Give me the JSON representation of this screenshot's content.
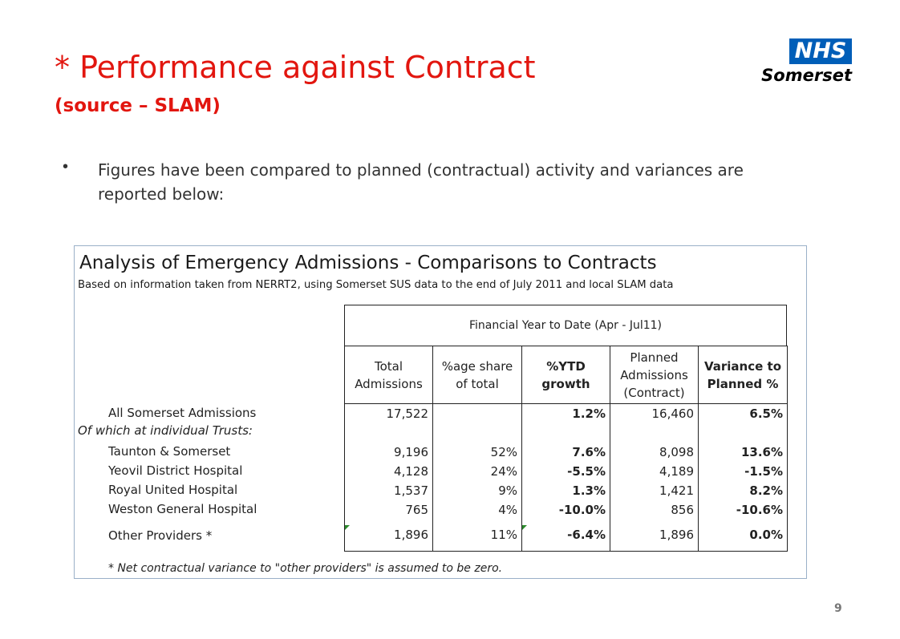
{
  "slide": {
    "title": "* Performance against Contract",
    "subtitle": "(source – SLAM)",
    "bullet": "Figures have been compared to planned (contractual) activity and variances are reported below:",
    "page_number": "9"
  },
  "logo": {
    "mark": "NHS",
    "name": "Somerset",
    "color": "#005eb8"
  },
  "table": {
    "title": "Analysis of Emergency Admissions - Comparisons to Contracts",
    "subtitle": "Based on information taken from NERRT2, using Somerset SUS data to the end of July 2011 and local SLAM data",
    "period_header": "Financial Year to Date (Apr - Jul11)",
    "columns": [
      "Total Admissions",
      "%age share of total",
      "%YTD growth",
      "Planned Admissions (Contract)",
      "Variance to Planned %"
    ],
    "section_label": "Of which at individual Trusts:",
    "rows": [
      {
        "label": "All Somerset Admissions",
        "total": "17,522",
        "share": "",
        "growth": "1.2%",
        "planned": "16,460",
        "variance": "6.5%"
      },
      {
        "label": "Taunton & Somerset",
        "total": "9,196",
        "share": "52%",
        "growth": "7.6%",
        "planned": "8,098",
        "variance": "13.6%"
      },
      {
        "label": "Yeovil District Hospital",
        "total": "4,128",
        "share": "24%",
        "growth": "-5.5%",
        "planned": "4,189",
        "variance": "-1.5%"
      },
      {
        "label": "Royal United Hospital",
        "total": "1,537",
        "share": "9%",
        "growth": "1.3%",
        "planned": "1,421",
        "variance": "8.2%"
      },
      {
        "label": "Weston General Hospital",
        "total": "765",
        "share": "4%",
        "growth": "-10.0%",
        "planned": "856",
        "variance": "-10.6%"
      },
      {
        "label": "Other Providers *",
        "total": "1,896",
        "share": "11%",
        "growth": "-6.4%",
        "planned": "1,896",
        "variance": "0.0%"
      }
    ],
    "footnote": "* Net contractual variance to \"other providers\" is assumed to be zero."
  }
}
